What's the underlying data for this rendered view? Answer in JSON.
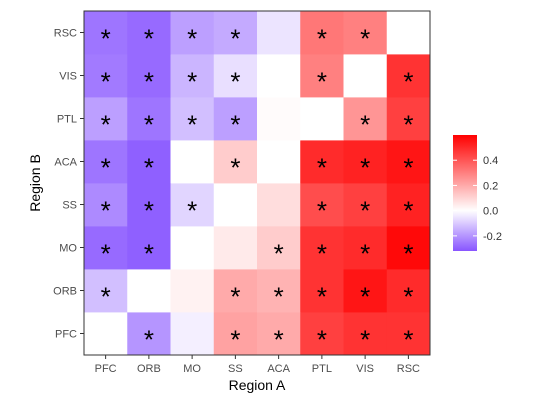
{
  "chart_data": {
    "type": "heatmap",
    "xlabel": "Region A",
    "ylabel": "Region B",
    "x_categories": [
      "PFC",
      "ORB",
      "MO",
      "SS",
      "ACA",
      "PTL",
      "VIS",
      "RSC"
    ],
    "y_categories": [
      "PFC",
      "ORB",
      "MO",
      "SS",
      "ACA",
      "PTL",
      "VIS",
      "RSC"
    ],
    "values": {
      "PFC": [
        0.0,
        -0.2,
        -0.03,
        0.22,
        0.2,
        0.45,
        0.48,
        0.48
      ],
      "ORB": [
        -0.12,
        0.0,
        0.03,
        0.2,
        0.18,
        0.48,
        0.55,
        0.5
      ],
      "MO": [
        -0.28,
        -0.3,
        0.0,
        0.05,
        0.12,
        0.48,
        0.5,
        0.58
      ],
      "SS": [
        -0.22,
        -0.3,
        -0.08,
        0.0,
        0.08,
        0.42,
        0.45,
        0.52
      ],
      "ACA": [
        -0.26,
        -0.3,
        0.0,
        0.12,
        0.0,
        0.5,
        0.52,
        0.55
      ],
      "PTL": [
        -0.18,
        -0.26,
        -0.12,
        -0.18,
        0.01,
        0.0,
        0.25,
        0.45
      ],
      "VIS": [
        -0.25,
        -0.28,
        -0.14,
        -0.06,
        0.0,
        0.3,
        0.0,
        0.48
      ],
      "RSC": [
        -0.26,
        -0.28,
        -0.18,
        -0.16,
        -0.05,
        0.32,
        0.3,
        0.0
      ]
    },
    "significant": {
      "PFC": [
        false,
        true,
        false,
        true,
        true,
        true,
        true,
        true
      ],
      "ORB": [
        true,
        false,
        false,
        true,
        true,
        true,
        true,
        true
      ],
      "MO": [
        true,
        true,
        false,
        false,
        true,
        true,
        true,
        true
      ],
      "SS": [
        true,
        true,
        true,
        false,
        false,
        true,
        true,
        true
      ],
      "ACA": [
        true,
        true,
        false,
        true,
        false,
        true,
        true,
        true
      ],
      "PTL": [
        true,
        true,
        true,
        true,
        false,
        false,
        true,
        true
      ],
      "VIS": [
        true,
        true,
        true,
        true,
        false,
        true,
        false,
        true
      ],
      "RSC": [
        true,
        true,
        true,
        true,
        false,
        true,
        true,
        false
      ]
    },
    "significance_marker": "*",
    "color_scale": {
      "low": "#8855ff",
      "mid": "#ffffff",
      "high": "#ff0000",
      "min": -0.32,
      "max": 0.6,
      "breaks": [
        -0.2,
        0.0,
        0.2,
        0.4
      ],
      "break_labels": [
        "-0.2",
        "0.0",
        "0.2",
        "0.4"
      ]
    },
    "legend_position": "right",
    "grid": false
  }
}
